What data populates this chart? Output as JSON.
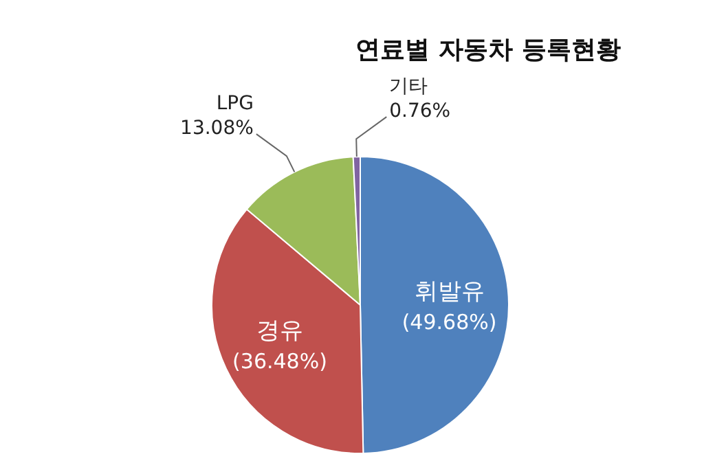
{
  "chart_data": {
    "type": "pie",
    "title": "연료별 자동차 등록현황",
    "categories": [
      "휘발유",
      "경유",
      "LPG",
      "기타"
    ],
    "values": [
      49.68,
      36.48,
      13.08,
      0.76
    ],
    "value_labels": [
      "(49.68%)",
      "(36.48%)",
      "13.08%",
      "0.76%"
    ],
    "colors": [
      "#4f81bd",
      "#c0504d",
      "#9bbb59",
      "#8064a2"
    ]
  }
}
